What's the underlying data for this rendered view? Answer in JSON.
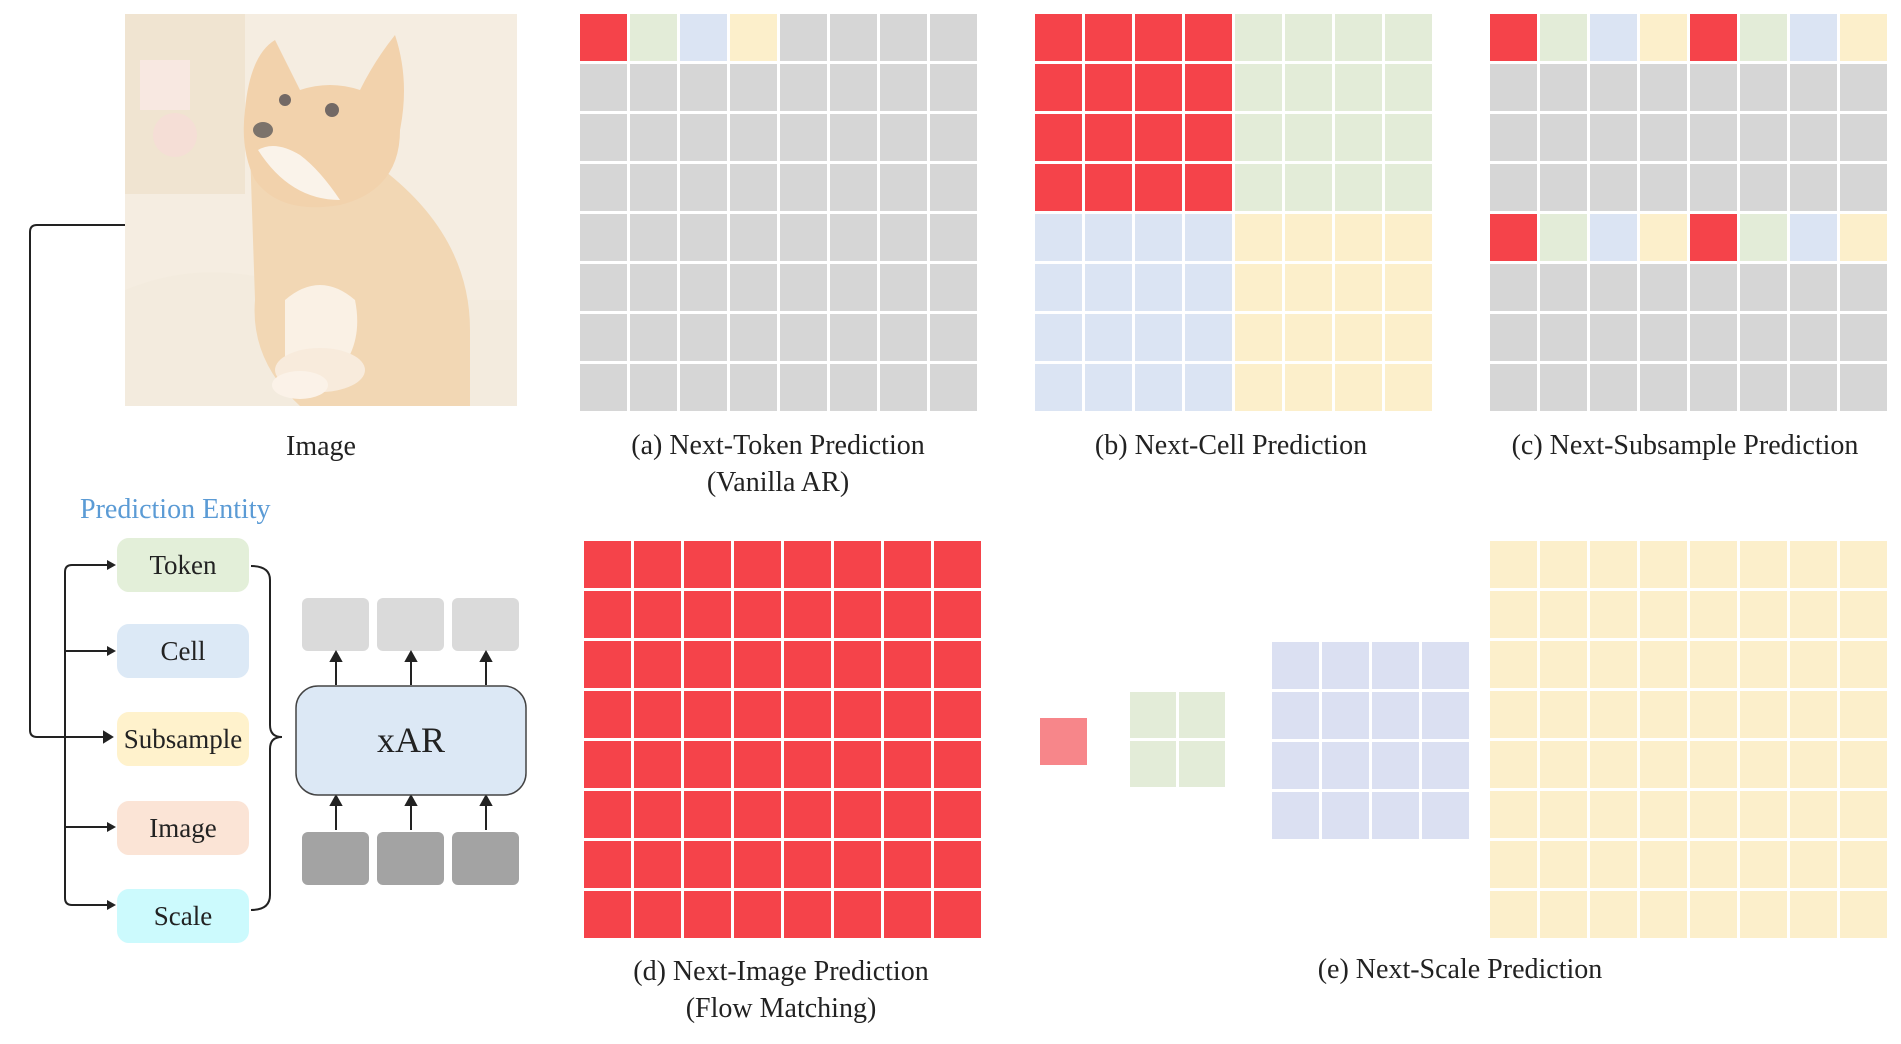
{
  "colors": {
    "red": "#f5434a",
    "green": "#e3ecd8",
    "blue": "#dbe4f3",
    "yellow": "#fcefcb",
    "gray": "#d6d6d6",
    "dark_gray": "#a3a3a3",
    "light_gray": "#dadada",
    "entity_title": "#5b9bd5",
    "token": "#e3efd9",
    "cell": "#dce9f6",
    "subsample": "#fff2cc",
    "image": "#fbe4d6",
    "scale": "#ccfafd",
    "xar_box": "#dce8f5",
    "next_scale_1x1": "#f7868a",
    "next_scale_2x2": "#e3ecd8",
    "next_scale_4x4": "#dbe0f2"
  },
  "image_panel": {
    "label": "Image",
    "content": "photo of a shiba inu dog lying on a sofa (faded)"
  },
  "legend": {
    "title": "Prediction Entity",
    "entities": [
      "Token",
      "Cell",
      "Subsample",
      "Image",
      "Scale"
    ],
    "model_label": "xAR"
  },
  "panels": {
    "a": {
      "line1": "(a) Next-Token Prediction",
      "line2": "(Vanilla AR)"
    },
    "b": {
      "line1": "(b) Next-Cell Prediction"
    },
    "c": {
      "line1": "(c) Next-Subsample Prediction"
    },
    "d": {
      "line1": "(d) Next-Image Prediction",
      "line2": "(Flow Matching)"
    },
    "e": {
      "line1": "(e) Next-Scale Prediction"
    }
  },
  "grids": {
    "a": {
      "size": 8,
      "colored_tokens": [
        "red",
        "green",
        "blue",
        "yellow"
      ],
      "rest": "gray"
    },
    "b": {
      "size": 8,
      "quadrants": [
        "red",
        "green",
        "blue",
        "yellow"
      ],
      "cell_size": 4
    },
    "c": {
      "size": 8,
      "colored_rows": [
        0,
        4
      ],
      "row_pattern": [
        "red",
        "green",
        "blue",
        "yellow",
        "red",
        "green",
        "blue",
        "yellow"
      ],
      "rest": "gray"
    },
    "d": {
      "size": 8,
      "fill": "red"
    },
    "e": {
      "scales": [
        1,
        2,
        4,
        8
      ]
    }
  }
}
